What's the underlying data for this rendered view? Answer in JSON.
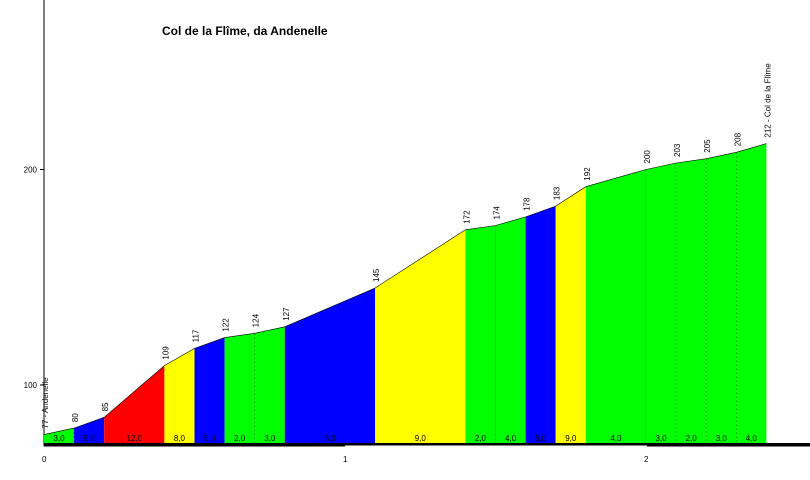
{
  "chart_data": {
    "type": "area",
    "title": "Col de la Flîme, da Andenelle",
    "xlabel": "",
    "ylabel": "",
    "xlim": [
      0,
      2.5
    ],
    "ylim": [
      75,
      275
    ],
    "x_ticks": [
      {
        "value": 0,
        "label": "0"
      },
      {
        "value": 1,
        "label": "1"
      },
      {
        "value": 2,
        "label": "2"
      }
    ],
    "y_ticks": [
      {
        "value": 100,
        "label": "100"
      },
      {
        "value": 200,
        "label": "200"
      }
    ],
    "points": [
      {
        "x": 0.0,
        "y": 77,
        "label": "77 - Andenelle"
      },
      {
        "x": 0.1,
        "y": 80,
        "label": "80"
      },
      {
        "x": 0.2,
        "y": 85,
        "label": "85"
      },
      {
        "x": 0.4,
        "y": 109,
        "label": "109"
      },
      {
        "x": 0.5,
        "y": 117,
        "label": "117"
      },
      {
        "x": 0.6,
        "y": 122,
        "label": "122"
      },
      {
        "x": 0.7,
        "y": 124,
        "label": "124"
      },
      {
        "x": 0.8,
        "y": 127,
        "label": "127"
      },
      {
        "x": 1.1,
        "y": 145,
        "label": "145"
      },
      {
        "x": 1.4,
        "y": 172,
        "label": "172"
      },
      {
        "x": 1.5,
        "y": 174,
        "label": "174"
      },
      {
        "x": 1.6,
        "y": 178,
        "label": "178"
      },
      {
        "x": 1.7,
        "y": 183,
        "label": "183"
      },
      {
        "x": 1.8,
        "y": 192,
        "label": "192"
      },
      {
        "x": 2.0,
        "y": 200,
        "label": "200"
      },
      {
        "x": 2.1,
        "y": 203,
        "label": "203"
      },
      {
        "x": 2.2,
        "y": 205,
        "label": "205"
      },
      {
        "x": 2.3,
        "y": 208,
        "label": "208"
      },
      {
        "x": 2.4,
        "y": 212,
        "label": "212 - Col de la Flîme"
      }
    ],
    "segments": [
      {
        "from": 0.0,
        "to": 0.1,
        "gradient": "3,0",
        "color": "#00ff00",
        "dashed_end": true
      },
      {
        "from": 0.1,
        "to": 0.2,
        "gradient": "5,0",
        "color": "#0000ff",
        "dashed_end": false
      },
      {
        "from": 0.2,
        "to": 0.4,
        "gradient": "12,0",
        "color": "#ff0000",
        "dashed_end": false
      },
      {
        "from": 0.4,
        "to": 0.5,
        "gradient": "8,0",
        "color": "#ffff00",
        "dashed_end": false
      },
      {
        "from": 0.5,
        "to": 0.6,
        "gradient": "5,0",
        "color": "#0000ff",
        "dashed_end": false
      },
      {
        "from": 0.6,
        "to": 0.7,
        "gradient": "2,0",
        "color": "#00ff00",
        "dashed_end": true
      },
      {
        "from": 0.7,
        "to": 0.8,
        "gradient": "3,0",
        "color": "#00ff00",
        "dashed_end": false
      },
      {
        "from": 0.8,
        "to": 1.1,
        "gradient": "6,0",
        "color": "#0000ff",
        "dashed_end": false
      },
      {
        "from": 1.1,
        "to": 1.4,
        "gradient": "9,0",
        "color": "#ffff00",
        "dashed_end": false
      },
      {
        "from": 1.4,
        "to": 1.5,
        "gradient": "2,0",
        "color": "#00ff00",
        "dashed_end": true
      },
      {
        "from": 1.5,
        "to": 1.6,
        "gradient": "4,0",
        "color": "#00ff00",
        "dashed_end": false
      },
      {
        "from": 1.6,
        "to": 1.7,
        "gradient": "5,0",
        "color": "#0000ff",
        "dashed_end": false
      },
      {
        "from": 1.7,
        "to": 1.8,
        "gradient": "9,0",
        "color": "#ffff00",
        "dashed_end": false
      },
      {
        "from": 1.8,
        "to": 2.0,
        "gradient": "4,0",
        "color": "#00ff00",
        "dashed_end": true
      },
      {
        "from": 2.0,
        "to": 2.1,
        "gradient": "3,0",
        "color": "#00ff00",
        "dashed_end": true
      },
      {
        "from": 2.1,
        "to": 2.2,
        "gradient": "2,0",
        "color": "#00ff00",
        "dashed_end": true
      },
      {
        "from": 2.2,
        "to": 2.3,
        "gradient": "3,0",
        "color": "#00ff00",
        "dashed_end": true
      },
      {
        "from": 2.3,
        "to": 2.4,
        "gradient": "4,0",
        "color": "#00ff00",
        "dashed_end": false
      }
    ],
    "legend": "none",
    "grid": false
  }
}
